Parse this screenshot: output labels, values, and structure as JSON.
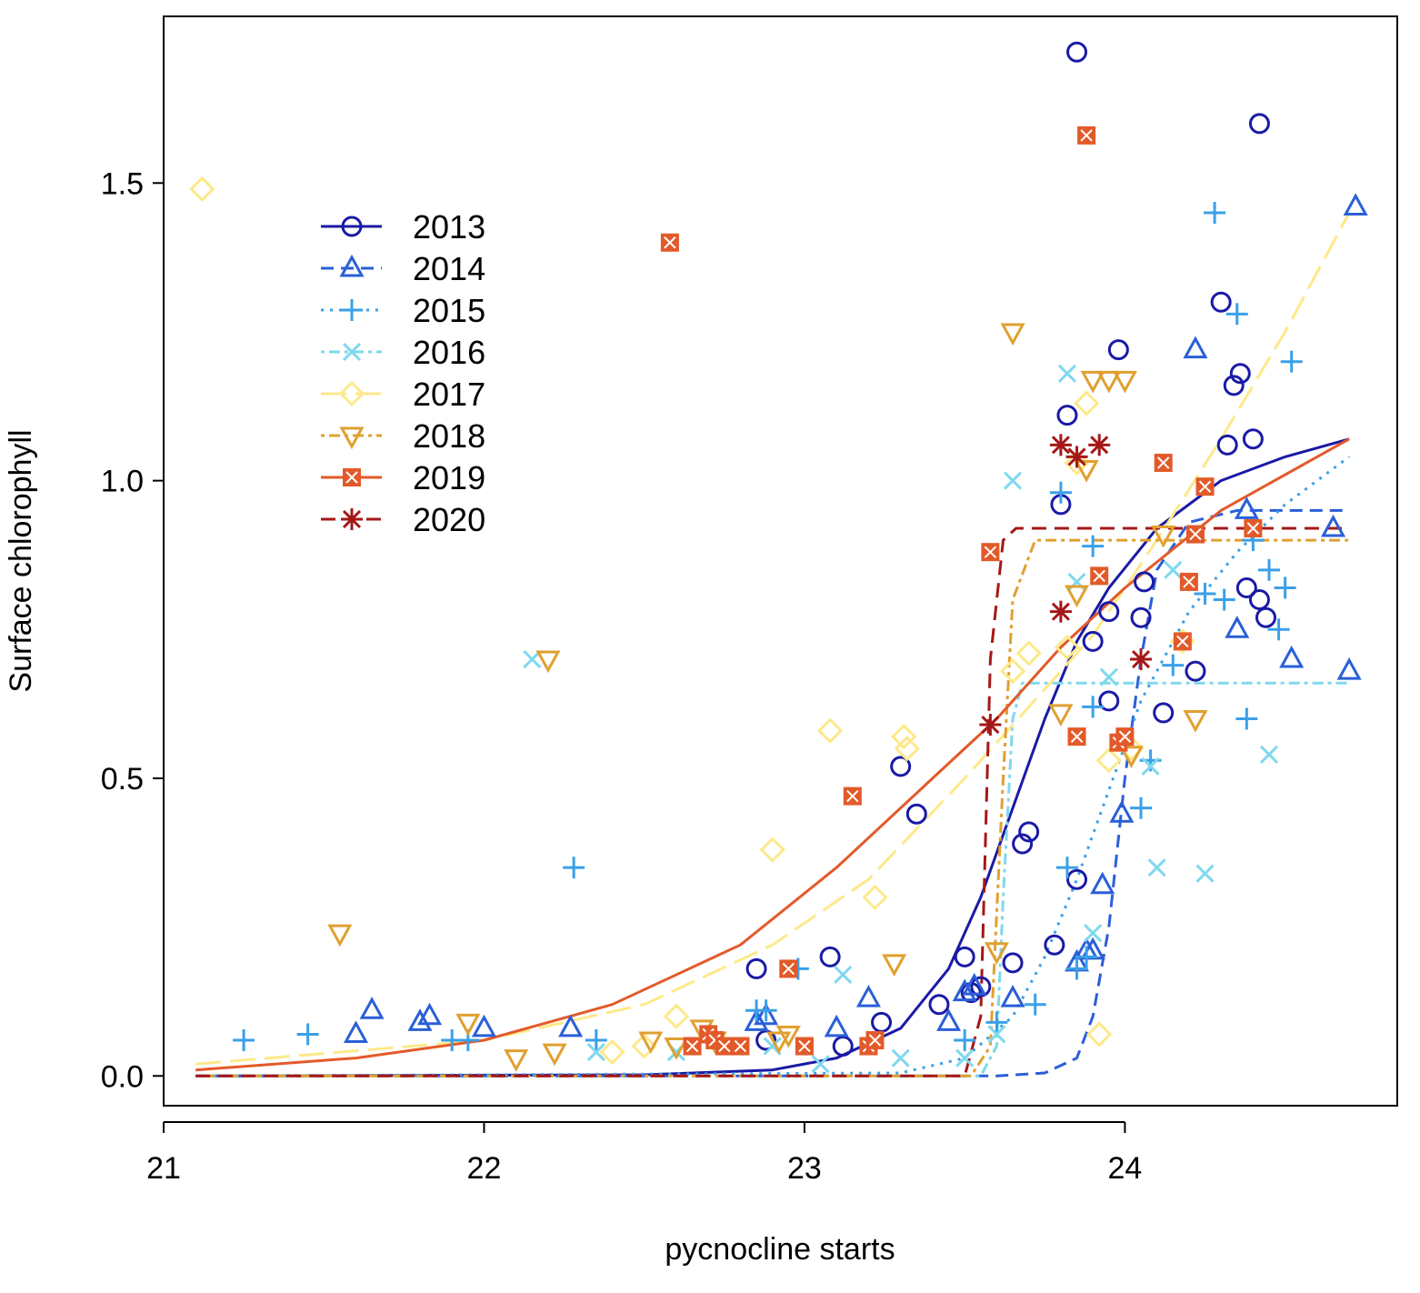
{
  "chart_data": {
    "type": "scatter",
    "xlabel": "pycnocline starts",
    "ylabel": "Surface chlorophyll",
    "xlim": [
      21.0,
      24.85
    ],
    "ylim": [
      -0.05,
      1.78
    ],
    "x_ticks": [
      {
        "value": 21,
        "label": "21"
      },
      {
        "value": 22,
        "label": "22"
      },
      {
        "value": 23,
        "label": "23"
      },
      {
        "value": 24,
        "label": "24"
      }
    ],
    "y_ticks": [
      {
        "value": 0.0,
        "label": "0.0"
      },
      {
        "value": 0.5,
        "label": "0.5"
      },
      {
        "value": 1.0,
        "label": "1.0"
      },
      {
        "value": 1.5,
        "label": "1.5"
      }
    ],
    "legend_position": "upper-left",
    "series": [
      {
        "name": "2013",
        "color": "#1a1aa6",
        "marker": "circle",
        "dash": "",
        "curve": [
          [
            21.1,
            0
          ],
          [
            22.5,
            0.002
          ],
          [
            22.9,
            0.01
          ],
          [
            23.1,
            0.03
          ],
          [
            23.3,
            0.08
          ],
          [
            23.45,
            0.18
          ],
          [
            23.55,
            0.3
          ],
          [
            23.65,
            0.45
          ],
          [
            23.75,
            0.6
          ],
          [
            23.85,
            0.73
          ],
          [
            23.95,
            0.82
          ],
          [
            24.1,
            0.92
          ],
          [
            24.3,
            1.0
          ],
          [
            24.5,
            1.04
          ],
          [
            24.7,
            1.07
          ]
        ],
        "points": [
          [
            22.85,
            0.18
          ],
          [
            22.88,
            0.06
          ],
          [
            23.08,
            0.2
          ],
          [
            23.12,
            0.05
          ],
          [
            23.24,
            0.09
          ],
          [
            23.3,
            0.52
          ],
          [
            23.35,
            0.44
          ],
          [
            23.42,
            0.12
          ],
          [
            23.5,
            0.2
          ],
          [
            23.52,
            0.14
          ],
          [
            23.55,
            0.15
          ],
          [
            23.65,
            0.19
          ],
          [
            23.68,
            0.39
          ],
          [
            23.7,
            0.41
          ],
          [
            23.78,
            0.22
          ],
          [
            23.8,
            0.96
          ],
          [
            23.82,
            1.11
          ],
          [
            23.85,
            0.33
          ],
          [
            23.85,
            1.72
          ],
          [
            23.9,
            0.73
          ],
          [
            23.95,
            0.63
          ],
          [
            23.95,
            0.78
          ],
          [
            23.98,
            1.22
          ],
          [
            24.05,
            0.77
          ],
          [
            24.06,
            0.83
          ],
          [
            24.12,
            0.61
          ],
          [
            24.22,
            0.68
          ],
          [
            24.3,
            1.3
          ],
          [
            24.32,
            1.06
          ],
          [
            24.34,
            1.16
          ],
          [
            24.36,
            1.18
          ],
          [
            24.38,
            0.82
          ],
          [
            24.4,
            1.07
          ],
          [
            24.42,
            0.8
          ],
          [
            24.44,
            0.77
          ],
          [
            24.42,
            1.6
          ]
        ]
      },
      {
        "name": "2014",
        "color": "#2a5fd8",
        "marker": "triangle",
        "dash": "14,8",
        "curve": [
          [
            21.1,
            0
          ],
          [
            23.6,
            0
          ],
          [
            23.75,
            0.005
          ],
          [
            23.85,
            0.03
          ],
          [
            23.9,
            0.1
          ],
          [
            23.95,
            0.25
          ],
          [
            24.0,
            0.5
          ],
          [
            24.05,
            0.7
          ],
          [
            24.1,
            0.85
          ],
          [
            24.2,
            0.93
          ],
          [
            24.35,
            0.95
          ],
          [
            24.7,
            0.95
          ]
        ],
        "points": [
          [
            21.6,
            0.07
          ],
          [
            21.65,
            0.11
          ],
          [
            21.8,
            0.09
          ],
          [
            21.83,
            0.1
          ],
          [
            22.0,
            0.08
          ],
          [
            22.27,
            0.08
          ],
          [
            22.85,
            0.09
          ],
          [
            22.88,
            0.1
          ],
          [
            23.1,
            0.08
          ],
          [
            23.2,
            0.13
          ],
          [
            23.45,
            0.09
          ],
          [
            23.5,
            0.14
          ],
          [
            23.53,
            0.15
          ],
          [
            23.65,
            0.13
          ],
          [
            23.85,
            0.19
          ],
          [
            23.88,
            0.21
          ],
          [
            23.9,
            0.21
          ],
          [
            23.93,
            0.32
          ],
          [
            23.99,
            0.44
          ],
          [
            24.22,
            1.22
          ],
          [
            24.35,
            0.75
          ],
          [
            24.38,
            0.95
          ],
          [
            24.52,
            0.7
          ],
          [
            24.65,
            0.92
          ],
          [
            24.7,
            0.68
          ],
          [
            24.72,
            1.46
          ]
        ]
      },
      {
        "name": "2015",
        "color": "#3aa0e8",
        "marker": "plus",
        "dash": "3,7",
        "curve": [
          [
            21.1,
            0
          ],
          [
            23.3,
            0.005
          ],
          [
            23.5,
            0.03
          ],
          [
            23.65,
            0.1
          ],
          [
            23.75,
            0.2
          ],
          [
            23.85,
            0.33
          ],
          [
            23.95,
            0.48
          ],
          [
            24.05,
            0.63
          ],
          [
            24.2,
            0.78
          ],
          [
            24.35,
            0.88
          ],
          [
            24.5,
            0.96
          ],
          [
            24.7,
            1.04
          ]
        ],
        "points": [
          [
            21.25,
            0.06
          ],
          [
            21.45,
            0.07
          ],
          [
            21.9,
            0.06
          ],
          [
            21.95,
            0.06
          ],
          [
            22.28,
            0.35
          ],
          [
            22.35,
            0.06
          ],
          [
            22.85,
            0.11
          ],
          [
            22.88,
            0.11
          ],
          [
            22.98,
            0.18
          ],
          [
            23.5,
            0.06
          ],
          [
            23.6,
            0.09
          ],
          [
            23.72,
            0.12
          ],
          [
            23.8,
            0.98
          ],
          [
            23.82,
            0.35
          ],
          [
            23.85,
            0.18
          ],
          [
            23.88,
            0.2
          ],
          [
            23.9,
            0.89
          ],
          [
            23.9,
            0.62
          ],
          [
            24.05,
            0.45
          ],
          [
            24.08,
            0.53
          ],
          [
            24.15,
            0.69
          ],
          [
            24.25,
            0.81
          ],
          [
            24.28,
            1.45
          ],
          [
            24.31,
            0.8
          ],
          [
            24.35,
            1.28
          ],
          [
            24.38,
            0.6
          ],
          [
            24.4,
            0.9
          ],
          [
            24.45,
            0.85
          ],
          [
            24.48,
            0.75
          ],
          [
            24.5,
            0.82
          ],
          [
            24.52,
            1.2
          ]
        ]
      },
      {
        "name": "2016",
        "color": "#7fd8ee",
        "marker": "x",
        "dash": "4,5,12,5",
        "curve": [
          [
            21.1,
            0
          ],
          [
            23.55,
            0
          ],
          [
            23.6,
            0.05
          ],
          [
            23.62,
            0.3
          ],
          [
            23.65,
            0.6
          ],
          [
            23.68,
            0.66
          ],
          [
            24.7,
            0.66
          ]
        ],
        "points": [
          [
            22.15,
            0.7
          ],
          [
            22.35,
            0.04
          ],
          [
            22.6,
            0.04
          ],
          [
            22.9,
            0.05
          ],
          [
            23.05,
            0.02
          ],
          [
            23.12,
            0.17
          ],
          [
            23.3,
            0.03
          ],
          [
            23.5,
            0.03
          ],
          [
            23.6,
            0.07
          ],
          [
            23.65,
            1.0
          ],
          [
            23.82,
            1.18
          ],
          [
            23.85,
            0.83
          ],
          [
            23.9,
            0.24
          ],
          [
            23.95,
            0.67
          ],
          [
            24.08,
            0.52
          ],
          [
            24.1,
            0.35
          ],
          [
            24.15,
            0.85
          ],
          [
            24.25,
            0.34
          ],
          [
            24.45,
            0.54
          ]
        ]
      },
      {
        "name": "2017",
        "color": "#fde98a",
        "marker": "diamond",
        "dash": "28,10",
        "curve": [
          [
            21.1,
            0.02
          ],
          [
            22.0,
            0.06
          ],
          [
            22.5,
            0.12
          ],
          [
            22.9,
            0.22
          ],
          [
            23.2,
            0.33
          ],
          [
            23.5,
            0.5
          ],
          [
            23.7,
            0.62
          ],
          [
            23.9,
            0.74
          ],
          [
            24.1,
            0.9
          ],
          [
            24.3,
            1.07
          ],
          [
            24.5,
            1.25
          ],
          [
            24.7,
            1.45
          ]
        ],
        "points": [
          [
            21.12,
            1.49
          ],
          [
            22.4,
            0.04
          ],
          [
            22.5,
            0.05
          ],
          [
            22.6,
            0.1
          ],
          [
            22.9,
            0.38
          ],
          [
            23.08,
            0.58
          ],
          [
            23.22,
            0.3
          ],
          [
            23.31,
            0.57
          ],
          [
            23.32,
            0.55
          ],
          [
            23.65,
            0.68
          ],
          [
            23.7,
            0.71
          ],
          [
            23.82,
            0.72
          ],
          [
            23.85,
            1.03
          ],
          [
            23.88,
            1.13
          ],
          [
            23.92,
            0.07
          ],
          [
            23.95,
            0.53
          ],
          [
            24.02,
            0.55
          ],
          [
            24.18,
            0.73
          ]
        ]
      },
      {
        "name": "2018",
        "color": "#e0a030",
        "marker": "triangle-down",
        "dash": "4,5,12,5",
        "curve": [
          [
            21.1,
            0
          ],
          [
            23.52,
            0
          ],
          [
            23.58,
            0.05
          ],
          [
            23.62,
            0.5
          ],
          [
            23.65,
            0.8
          ],
          [
            23.72,
            0.9
          ],
          [
            24.7,
            0.9
          ]
        ],
        "points": [
          [
            21.55,
            0.24
          ],
          [
            21.95,
            0.09
          ],
          [
            22.1,
            0.03
          ],
          [
            22.22,
            0.04
          ],
          [
            22.2,
            0.7
          ],
          [
            22.52,
            0.06
          ],
          [
            22.6,
            0.05
          ],
          [
            22.68,
            0.08
          ],
          [
            22.72,
            0.06
          ],
          [
            22.92,
            0.06
          ],
          [
            22.95,
            0.07
          ],
          [
            23.28,
            0.19
          ],
          [
            23.6,
            0.21
          ],
          [
            23.65,
            1.25
          ],
          [
            23.8,
            0.61
          ],
          [
            23.85,
            0.81
          ],
          [
            23.88,
            1.02
          ],
          [
            23.9,
            1.17
          ],
          [
            23.95,
            1.17
          ],
          [
            24.0,
            1.17
          ],
          [
            24.02,
            0.54
          ],
          [
            24.12,
            0.91
          ],
          [
            24.22,
            0.6
          ]
        ]
      },
      {
        "name": "2019",
        "color": "#e35a2a",
        "marker": "square-x",
        "dash": "",
        "curve": [
          [
            21.1,
            0.01
          ],
          [
            21.6,
            0.03
          ],
          [
            22.0,
            0.06
          ],
          [
            22.4,
            0.12
          ],
          [
            22.8,
            0.22
          ],
          [
            23.1,
            0.35
          ],
          [
            23.4,
            0.5
          ],
          [
            23.6,
            0.6
          ],
          [
            23.8,
            0.72
          ],
          [
            24.0,
            0.82
          ],
          [
            24.3,
            0.95
          ],
          [
            24.7,
            1.07
          ]
        ],
        "points": [
          [
            22.58,
            1.4
          ],
          [
            22.65,
            0.05
          ],
          [
            22.7,
            0.07
          ],
          [
            22.72,
            0.06
          ],
          [
            22.75,
            0.05
          ],
          [
            22.8,
            0.05
          ],
          [
            22.95,
            0.18
          ],
          [
            23.0,
            0.05
          ],
          [
            23.15,
            0.47
          ],
          [
            23.2,
            0.05
          ],
          [
            23.22,
            0.06
          ],
          [
            23.58,
            0.88
          ],
          [
            23.85,
            0.57
          ],
          [
            23.88,
            1.58
          ],
          [
            23.92,
            0.84
          ],
          [
            23.98,
            0.56
          ],
          [
            24.0,
            0.57
          ],
          [
            24.12,
            1.03
          ],
          [
            24.18,
            0.73
          ],
          [
            24.2,
            0.83
          ],
          [
            24.22,
            0.91
          ],
          [
            24.25,
            0.99
          ],
          [
            24.4,
            0.92
          ]
        ]
      },
      {
        "name": "2020",
        "color": "#a41818",
        "marker": "asterisk",
        "dash": "16,9",
        "curve": [
          [
            21.1,
            0
          ],
          [
            23.5,
            0
          ],
          [
            23.55,
            0.1
          ],
          [
            23.58,
            0.7
          ],
          [
            23.62,
            0.9
          ],
          [
            23.66,
            0.92
          ],
          [
            24.7,
            0.92
          ]
        ],
        "points": [
          [
            23.58,
            0.59
          ],
          [
            23.8,
            1.06
          ],
          [
            23.8,
            0.78
          ],
          [
            23.85,
            1.04
          ],
          [
            23.92,
            1.06
          ],
          [
            24.05,
            0.7
          ]
        ]
      }
    ]
  }
}
